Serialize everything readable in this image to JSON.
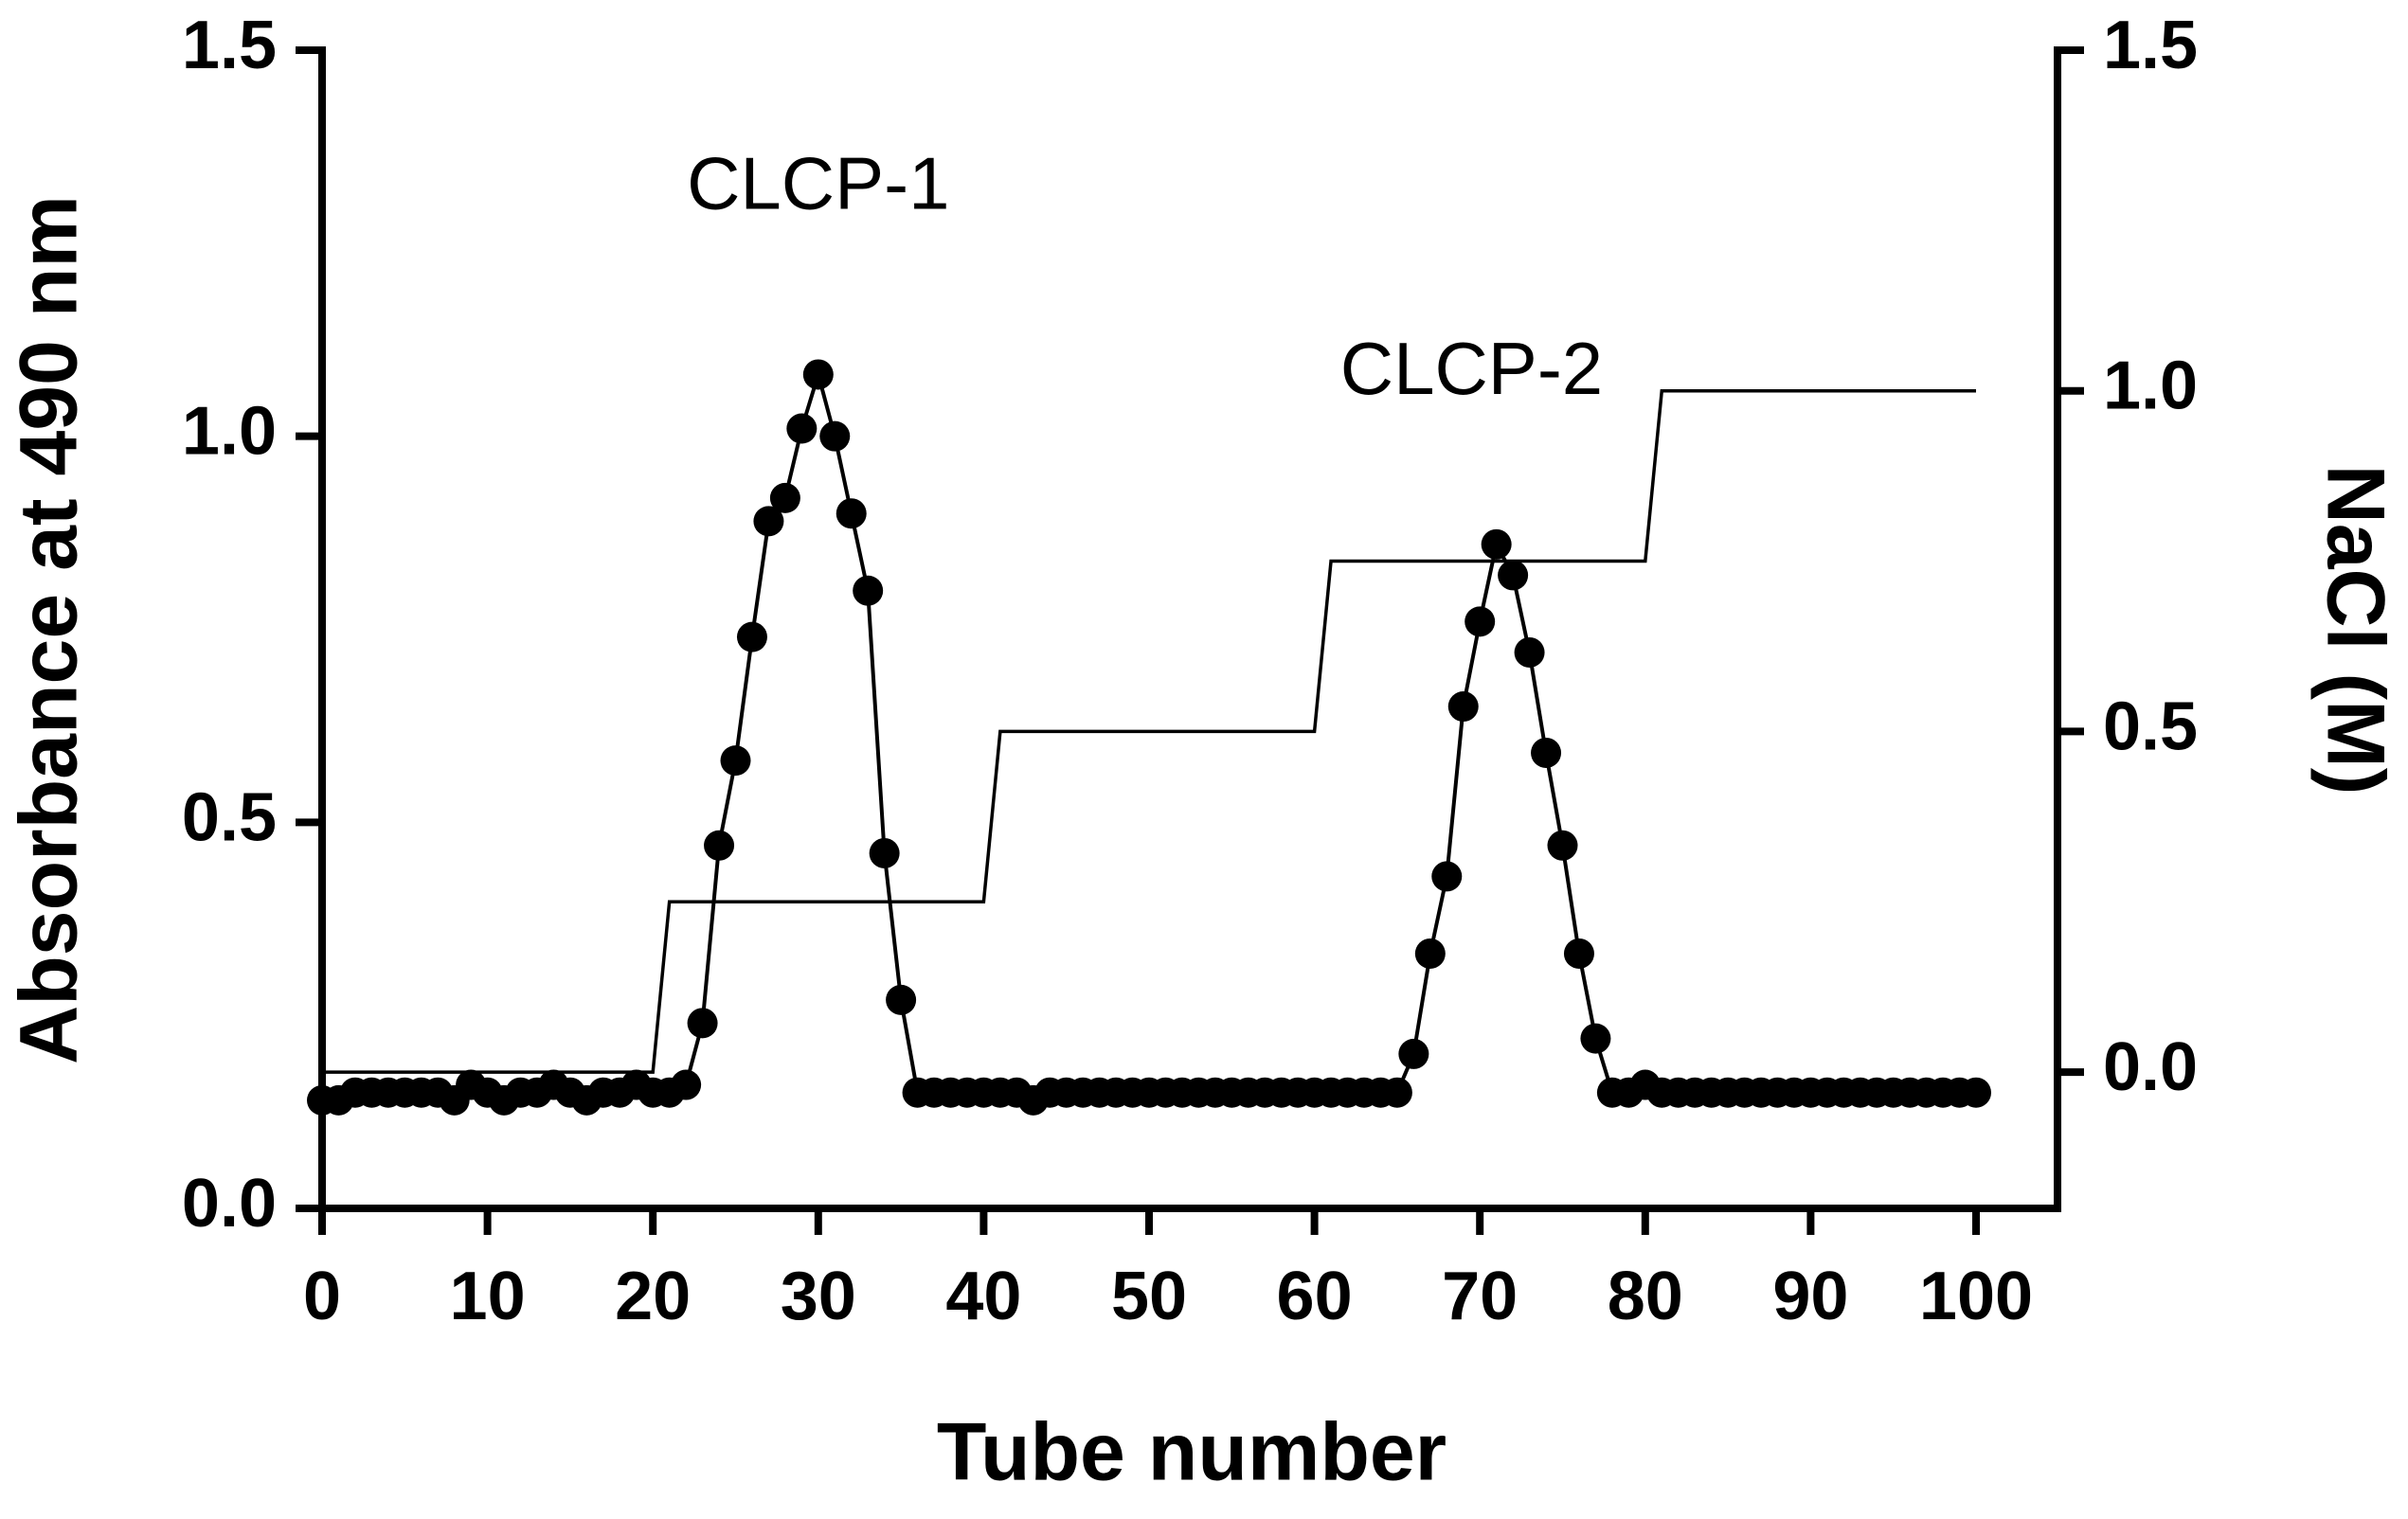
{
  "chart_data": {
    "type": "line",
    "xlabel": "Tube number",
    "ylabel": "Absorbance at 490 nm",
    "y2label": "NaCl  (M)",
    "xlim": [
      0,
      100
    ],
    "xticks": [
      0,
      10,
      20,
      30,
      40,
      50,
      60,
      70,
      80,
      90,
      100
    ],
    "ylim": [
      0,
      1.5
    ],
    "yticks": [
      {
        "value": 0,
        "label": "0.0"
      },
      0.5,
      {
        "value": 1,
        "label": "1.0"
      },
      1.5
    ],
    "y2lim": [
      -0.2,
      1.5
    ],
    "y2ticks": [
      {
        "value": 0,
        "label": "0.0"
      },
      0.5,
      {
        "value": 1,
        "label": "1.0"
      },
      1.5
    ],
    "annotations": [
      {
        "text": "CLCP-1",
        "x": 30,
        "y": 1.32
      },
      {
        "text": "CLCP-2",
        "x": 69.5,
        "y": 1.08
      }
    ],
    "series": [
      {
        "color": "#000000",
        "markers": true,
        "x": [
          0,
          1,
          2,
          3,
          4,
          5,
          6,
          7,
          8,
          9,
          10,
          11,
          12,
          13,
          14,
          15,
          16,
          17,
          18,
          19,
          20,
          21,
          22,
          23,
          24,
          25,
          26,
          27,
          28,
          29,
          30,
          31,
          32,
          33,
          34,
          35,
          36,
          37,
          38,
          39,
          40,
          41,
          42,
          43,
          44,
          45,
          46,
          47,
          48,
          49,
          50,
          51,
          52,
          53,
          54,
          55,
          56,
          57,
          58,
          59,
          60,
          61,
          62,
          63,
          64,
          65,
          66,
          67,
          68,
          69,
          70,
          71,
          72,
          73,
          74,
          75,
          76,
          77,
          78,
          79,
          80,
          81,
          82,
          83,
          84,
          85,
          86,
          87,
          88,
          89,
          90,
          91,
          92,
          93,
          94,
          95,
          96,
          97,
          98,
          99,
          100
        ],
        "values": [
          0.14,
          0.14,
          0.15,
          0.15,
          0.15,
          0.15,
          0.15,
          0.15,
          0.14,
          0.16,
          0.15,
          0.14,
          0.15,
          0.15,
          0.16,
          0.15,
          0.14,
          0.15,
          0.15,
          0.16,
          0.15,
          0.15,
          0.16,
          0.24,
          0.47,
          0.58,
          0.74,
          0.89,
          0.92,
          1.01,
          1.08,
          1.0,
          0.9,
          0.8,
          0.46,
          0.27,
          0.15,
          0.15,
          0.15,
          0.15,
          0.15,
          0.15,
          0.15,
          0.14,
          0.15,
          0.15,
          0.15,
          0.15,
          0.15,
          0.15,
          0.15,
          0.15,
          0.15,
          0.15,
          0.15,
          0.15,
          0.15,
          0.15,
          0.15,
          0.15,
          0.15,
          0.15,
          0.15,
          0.15,
          0.15,
          0.15,
          0.2,
          0.33,
          0.43,
          0.65,
          0.76,
          0.86,
          0.82,
          0.72,
          0.59,
          0.47,
          0.33,
          0.22,
          0.15,
          0.15,
          0.16,
          0.15,
          0.15,
          0.15,
          0.15,
          0.15,
          0.15,
          0.15,
          0.15,
          0.15,
          0.15,
          0.15,
          0.15,
          0.15,
          0.15,
          0.15,
          0.15,
          0.15,
          0.15,
          0.15,
          0.15
        ]
      },
      {
        "color": "#000000",
        "axis": "y2",
        "markers": false,
        "x": [
          0,
          20,
          21,
          40,
          41,
          60,
          61,
          80,
          81,
          100
        ],
        "values": [
          0,
          0,
          0.25,
          0.25,
          0.5,
          0.5,
          0.75,
          0.75,
          1,
          1
        ]
      }
    ]
  }
}
